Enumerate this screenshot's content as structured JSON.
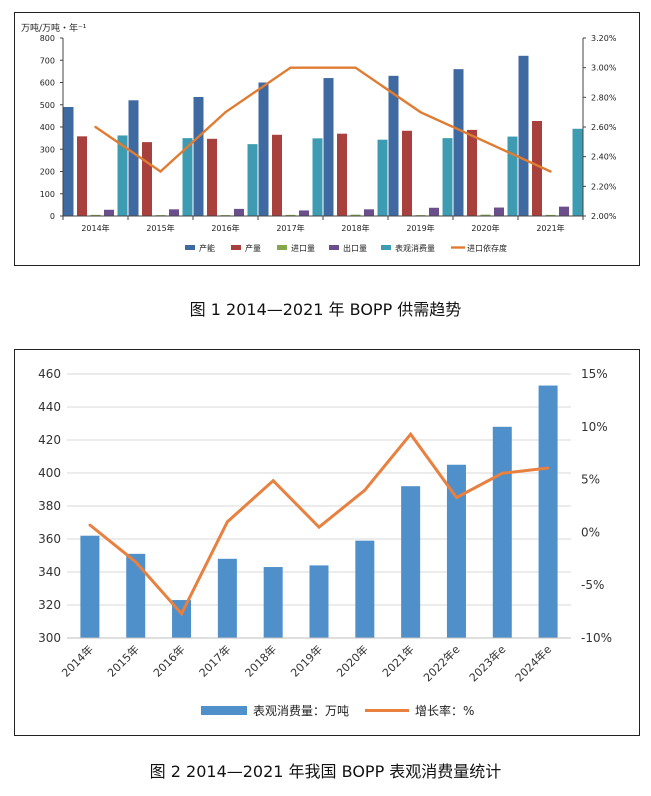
{
  "figure1": {
    "caption": "图 1  2014—2021 年 BOPP 供需趋势",
    "y_left_unit": "万吨/万吨・年⁻¹",
    "chart_data": {
      "type": "bar",
      "categories": [
        "2014年",
        "2015年",
        "2016年",
        "2017年",
        "2018年",
        "2019年",
        "2020年",
        "2021年"
      ],
      "series": [
        {
          "name": "产能",
          "kind": "bar",
          "axis": "left",
          "color": "#3f6aa1",
          "values": [
            490,
            520,
            535,
            600,
            620,
            630,
            660,
            720
          ]
        },
        {
          "name": "产量",
          "kind": "bar",
          "axis": "left",
          "color": "#a8413d",
          "values": [
            358,
            332,
            347,
            365,
            370,
            383,
            387,
            427
          ]
        },
        {
          "name": "进口量",
          "kind": "bar",
          "axis": "left",
          "color": "#86a64a",
          "values": [
            5,
            4,
            4,
            5,
            6,
            4,
            6,
            5
          ]
        },
        {
          "name": "出口量",
          "kind": "bar",
          "axis": "left",
          "color": "#6a4f8c",
          "values": [
            28,
            30,
            32,
            25,
            30,
            37,
            38,
            42
          ]
        },
        {
          "name": "表观消费量",
          "kind": "bar",
          "axis": "left",
          "color": "#3e9cb2",
          "values": [
            362,
            350,
            323,
            349,
            343,
            350,
            357,
            392
          ]
        },
        {
          "name": "进口依存度",
          "kind": "line",
          "axis": "right",
          "color": "#e07c32",
          "values": [
            2.6,
            2.3,
            2.7,
            3.0,
            3.0,
            2.7,
            2.5,
            2.3
          ]
        }
      ],
      "y_left": {
        "min": 0,
        "max": 800,
        "step": 100,
        "ticks": [
          "0",
          "100",
          "200",
          "300",
          "400",
          "500",
          "600",
          "700",
          "800"
        ]
      },
      "y_right": {
        "min": 2.0,
        "max": 3.2,
        "step": 0.2,
        "ticks": [
          "2.00%",
          "2.20%",
          "2.40%",
          "2.60%",
          "2.80%",
          "3.00%",
          "3.20%"
        ]
      },
      "legend_position": "bottom",
      "grid": false
    }
  },
  "figure2": {
    "caption": "图 2  2014—2021 年我国 BOPP 表观消费量统计",
    "chart_data": {
      "type": "bar",
      "categories": [
        "2014年",
        "2015年",
        "2016年",
        "2017年",
        "2018年",
        "2019年",
        "2020年",
        "2021年",
        "2022年e",
        "2023年e",
        "2024年e"
      ],
      "series": [
        {
          "name": "表观消费量：万吨",
          "kind": "bar",
          "axis": "left",
          "color": "#4f8fca",
          "values": [
            362,
            351,
            323,
            348,
            343,
            344,
            359,
            392,
            405,
            428,
            453
          ]
        },
        {
          "name": "增长率：%",
          "kind": "line",
          "axis": "right",
          "color": "#e8803f",
          "values": [
            0.7,
            -2.8,
            -7.7,
            1.0,
            4.9,
            0.5,
            4.0,
            9.3,
            3.3,
            5.6,
            6.1
          ]
        }
      ],
      "y_left": {
        "min": 300,
        "max": 460,
        "step": 20,
        "ticks": [
          "300",
          "320",
          "340",
          "360",
          "380",
          "400",
          "420",
          "440",
          "460"
        ]
      },
      "y_right": {
        "min": -10,
        "max": 15,
        "step": 5,
        "ticks": [
          "-10%",
          "-5%",
          "0%",
          "5%",
          "10%",
          "15%"
        ]
      },
      "legend_position": "bottom",
      "grid": true
    }
  }
}
